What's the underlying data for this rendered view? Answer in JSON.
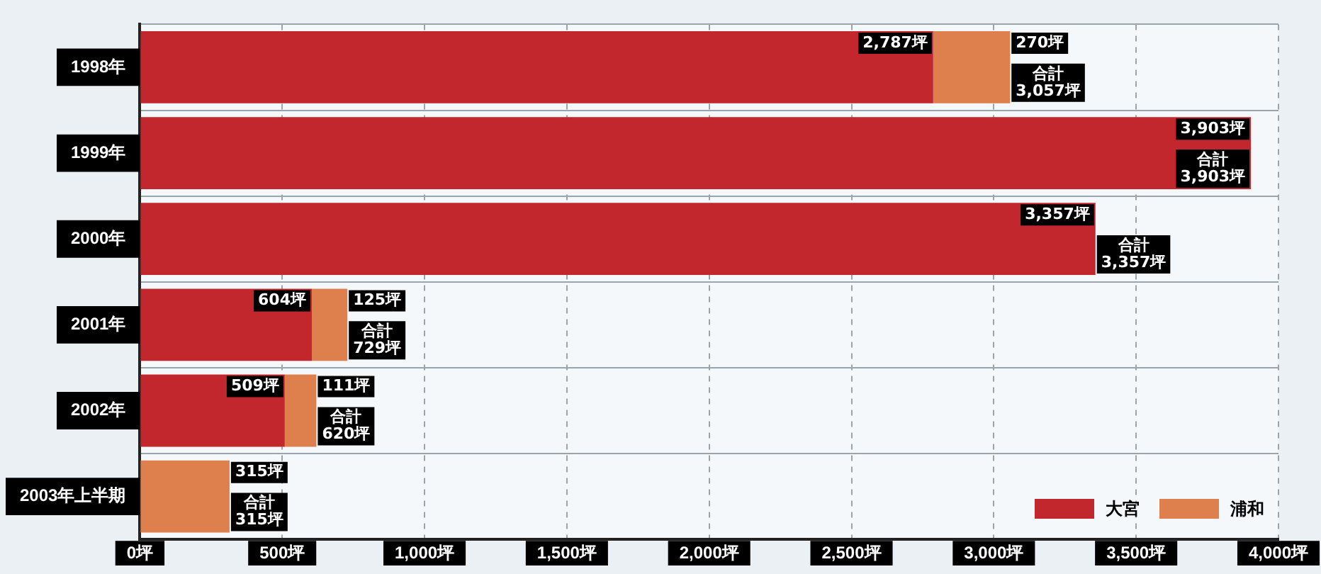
{
  "chart_data": {
    "type": "bar",
    "orientation": "horizontal",
    "stacked": true,
    "categories": [
      "1998年",
      "1999年",
      "2000年",
      "2001年",
      "2002年",
      "2003年上半期"
    ],
    "series": [
      {
        "name": "大宮",
        "color": "#c1272d",
        "values": [
          2787,
          3903,
          3357,
          604,
          509,
          null
        ],
        "value_labels": [
          "2,787坪",
          "3,903坪",
          "3,357坪",
          "604坪",
          "509坪",
          null
        ]
      },
      {
        "name": "浦和",
        "color": "#de7f4e",
        "values": [
          270,
          null,
          null,
          125,
          111,
          315
        ],
        "value_labels": [
          "270坪",
          null,
          null,
          "125坪",
          "111坪",
          "315坪"
        ]
      }
    ],
    "totals": [
      "合計\n3,057坪",
      "合計\n3,903坪",
      "合計\n3,357坪",
      "合計\n729坪",
      "合計\n620坪",
      "合計\n315坪"
    ],
    "xlim": [
      0,
      4000
    ],
    "xticks": [
      {
        "value": 0,
        "label": "0坪"
      },
      {
        "value": 500,
        "label": "500坪"
      },
      {
        "value": 1000,
        "label": "1,000坪"
      },
      {
        "value": 1500,
        "label": "1,500坪"
      },
      {
        "value": 2000,
        "label": "2,000坪"
      },
      {
        "value": 2500,
        "label": "2,500坪"
      },
      {
        "value": 3000,
        "label": "3,000坪"
      },
      {
        "value": 3500,
        "label": "3,500坪"
      },
      {
        "value": 4000,
        "label": "4,000坪"
      }
    ],
    "grid": true,
    "legend": "bottom right"
  }
}
